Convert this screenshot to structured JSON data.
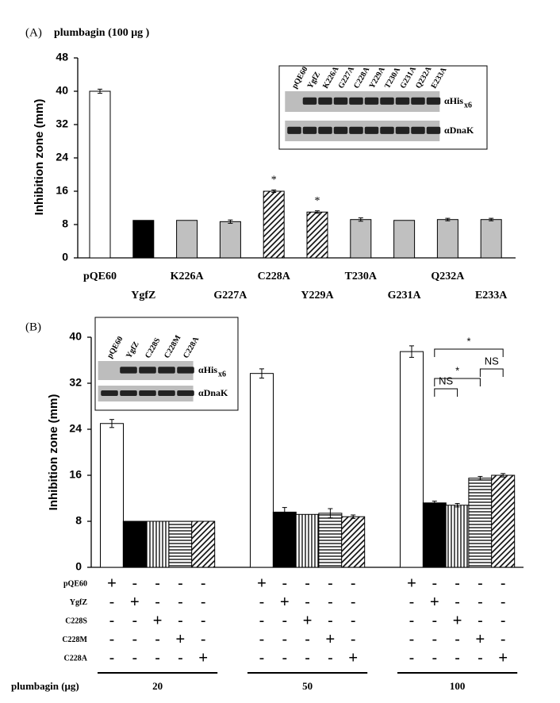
{
  "chart_data": [
    {
      "type": "bar",
      "label": "(A)",
      "title": "plumbagin (100 μg )",
      "ylabel": "Inhibition zone (mm)",
      "categories": [
        "pQE60",
        "YgfZ",
        "K226A",
        "G227A",
        "C228A",
        "Y229A",
        "T230A",
        "G231A",
        "Q232A",
        "E233A"
      ],
      "values": [
        40,
        9,
        9,
        8.7,
        16,
        11,
        9.2,
        9,
        9.2,
        9.2
      ],
      "errors": [
        0.5,
        0,
        0,
        0.4,
        0.3,
        0.3,
        0.4,
        0,
        0.3,
        0.3
      ],
      "colors": [
        "#ffffff",
        "#000000",
        "#c0c0c0",
        "#c0c0c0",
        "#ffffff",
        "#ffffff",
        "#c0c0c0",
        "#c0c0c0",
        "#c0c0c0",
        "#c0c0c0"
      ],
      "patterns": [
        "none",
        "none",
        "none",
        "none",
        "diagonal",
        "diagonal",
        "none",
        "none",
        "none",
        "none"
      ],
      "ylim": [
        0,
        48
      ],
      "yticks": [
        0,
        8,
        16,
        24,
        32,
        40,
        48
      ],
      "annotations": [
        "*",
        "*"
      ],
      "inset": {
        "lanes": [
          "pQE60",
          "YgfZ",
          "K226A",
          "G227A",
          "C228A",
          "Y229A",
          "T230A",
          "G231A",
          "Q232A",
          "E233A"
        ],
        "blots": [
          {
            "label": "αHis",
            "sub": "x6"
          },
          {
            "label": "αDnaK"
          }
        ]
      }
    },
    {
      "type": "grouped_bar",
      "label": "(B)",
      "ylabel": "Inhibition zone (mm)",
      "xlabel": "plumbagin (μg)",
      "categories": [
        "20",
        "50",
        "100"
      ],
      "series": [
        {
          "name": "pQE60",
          "color": "#ffffff",
          "pattern": "none",
          "values": [
            25,
            33.7,
            37.5
          ],
          "errors": [
            0.7,
            0.8,
            1
          ]
        },
        {
          "name": "YgfZ",
          "color": "#000000",
          "pattern": "none",
          "values": [
            8,
            9.6,
            11.2
          ],
          "errors": [
            0,
            0.8,
            0.3
          ]
        },
        {
          "name": "C228S",
          "color": "#ffffff",
          "pattern": "vertical",
          "values": [
            8,
            9.2,
            10.8
          ],
          "errors": [
            0,
            0,
            0.3
          ]
        },
        {
          "name": "C228M",
          "color": "#ffffff",
          "pattern": "horizontal",
          "values": [
            8,
            9.4,
            15.5
          ],
          "errors": [
            0,
            0.8,
            0.3
          ]
        },
        {
          "name": "C228A",
          "color": "#ffffff",
          "pattern": "diagonal",
          "values": [
            8,
            8.8,
            16
          ],
          "errors": [
            0,
            0.3,
            0.3
          ]
        }
      ],
      "ylim": [
        0,
        40
      ],
      "yticks": [
        0,
        8,
        16,
        24,
        32,
        40
      ],
      "annotations": [
        "*",
        "*",
        "NS",
        "NS"
      ],
      "table": {
        "rows": [
          [
            "+",
            "-",
            "-",
            "-",
            "-",
            "+",
            "-",
            "-",
            "-",
            "-",
            "+",
            "-",
            "-",
            "-",
            "-"
          ],
          [
            "-",
            "+",
            "-",
            "-",
            "-",
            "-",
            "+",
            "-",
            "-",
            "-",
            "-",
            "+",
            "-",
            "-",
            "-"
          ],
          [
            "-",
            "-",
            "+",
            "-",
            "-",
            "-",
            "-",
            "+",
            "-",
            "-",
            "-",
            "-",
            "+",
            "-",
            "-"
          ],
          [
            "-",
            "-",
            "-",
            "+",
            "-",
            "-",
            "-",
            "-",
            "+",
            "-",
            "-",
            "-",
            "-",
            "+",
            "-"
          ],
          [
            "-",
            "-",
            "-",
            "-",
            "+",
            "-",
            "-",
            "-",
            "-",
            "+",
            "-",
            "-",
            "-",
            "-",
            "+"
          ]
        ]
      },
      "inset": {
        "lanes": [
          "pQE60",
          "YgfZ",
          "C228S",
          "C228M",
          "C228A"
        ],
        "blots": [
          {
            "label": "αHis",
            "sub": "x6"
          },
          {
            "label": "αDnaK"
          }
        ]
      }
    }
  ]
}
